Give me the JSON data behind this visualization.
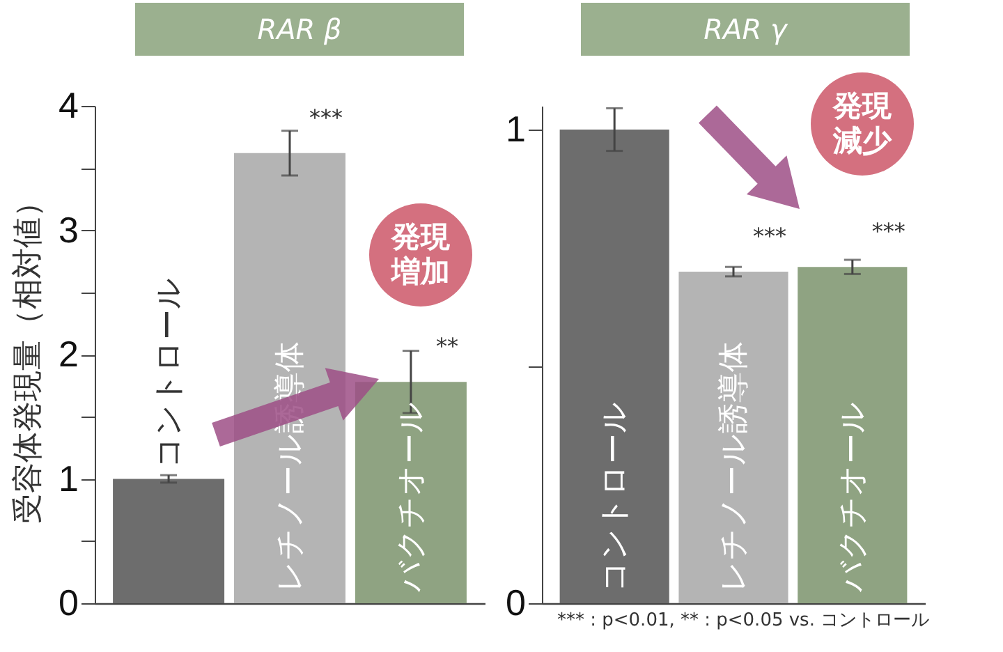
{
  "chart_data": [
    {
      "type": "bar",
      "title": "RAR β",
      "ylabel": "受容体発現量（相対値）",
      "categories": [
        "コントロール",
        "レチノール誘導体",
        "バクチオール"
      ],
      "values": [
        1.0,
        3.62,
        1.78
      ],
      "colors": [
        "#6d6d6d",
        "#b4b4b4",
        "#8fa382"
      ],
      "errors": [
        0.03,
        0.18,
        0.25
      ],
      "ylim": [
        0,
        4
      ],
      "yticks": [
        0,
        {
          "value": 0.5,
          "label": null
        },
        1,
        {
          "value": 1.5,
          "label": null
        },
        2,
        {
          "value": 2.5,
          "label": null
        },
        3,
        {
          "value": 3.5,
          "label": null
        },
        4
      ],
      "grid": false,
      "data_labels": false,
      "annotations": [
        "発現増加",
        {
          "text": "***",
          "x": "レチノール誘導体",
          "y": 3.62
        },
        {
          "text": "**",
          "x": "バクチオール",
          "y": 1.78
        }
      ]
    },
    {
      "type": "bar",
      "title": "RAR γ",
      "categories": [
        "コントロール",
        "レチノール誘導体",
        "バクチオール"
      ],
      "values": [
        1.0,
        0.7,
        0.71
      ],
      "colors": [
        "#6d6d6d",
        "#b4b4b4",
        "#8fa382"
      ],
      "errors": [
        0.045,
        0.01,
        0.015
      ],
      "ylim": [
        0,
        1.05
      ],
      "yticks": [
        0,
        {
          "value": 0.5,
          "label": null
        },
        1
      ],
      "grid": false,
      "annotations": [
        "発現減少",
        {
          "text": "***",
          "x": "レチノール誘導体",
          "y": 0.7
        },
        {
          "text": "***",
          "x": "バクチオール",
          "y": 0.71
        },
        "*** : p<0.01, ** : p<0.05 vs. コントロール"
      ]
    }
  ]
}
